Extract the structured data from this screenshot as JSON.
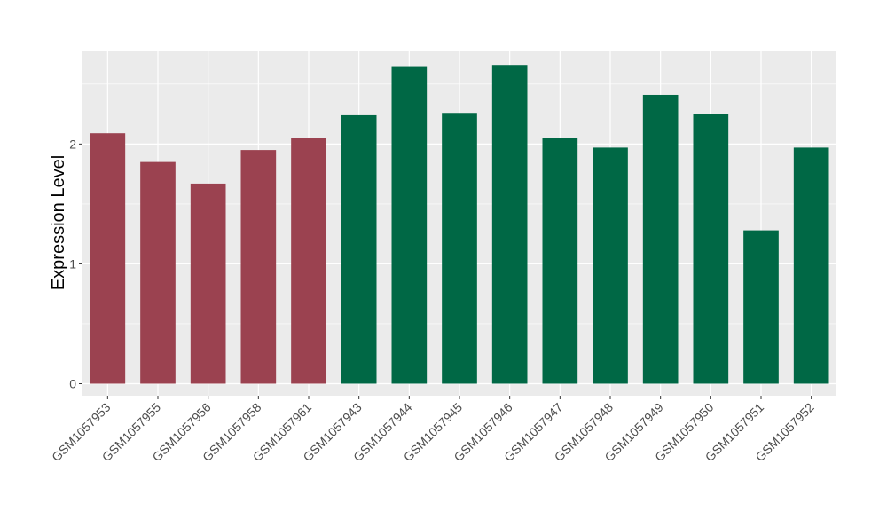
{
  "chart_data": {
    "type": "bar",
    "title": "",
    "xlabel": "",
    "ylabel": "Expression Level",
    "ylim": [
      -0.1,
      2.78
    ],
    "yticks": [
      0,
      1,
      2
    ],
    "grid": true,
    "legend": "none",
    "categories": [
      "GSM1057953",
      "GSM1057955",
      "GSM1057956",
      "GSM1057958",
      "GSM1057961",
      "GSM1057943",
      "GSM1057944",
      "GSM1057945",
      "GSM1057946",
      "GSM1057947",
      "GSM1057948",
      "GSM1057949",
      "GSM1057950",
      "GSM1057951",
      "GSM1057952"
    ],
    "values": [
      2.09,
      1.85,
      1.67,
      1.95,
      2.05,
      2.24,
      2.65,
      2.26,
      2.66,
      2.05,
      1.97,
      2.41,
      2.25,
      1.28,
      1.97
    ],
    "groups": [
      "a",
      "a",
      "a",
      "a",
      "a",
      "b",
      "b",
      "b",
      "b",
      "b",
      "b",
      "b",
      "b",
      "b",
      "b"
    ],
    "colors": {
      "a": "#9b4250",
      "b": "#006845",
      "panel": "#ebebeb",
      "grid": "#ffffff",
      "axis_text": "#4d4d4d",
      "tick": "#333333"
    }
  }
}
